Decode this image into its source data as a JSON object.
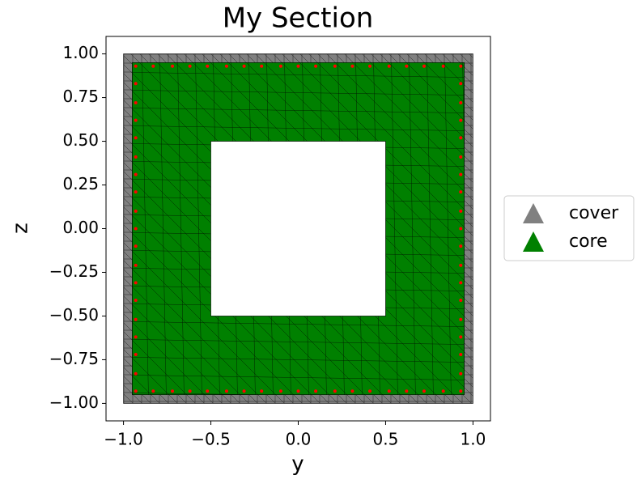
{
  "chart_data": {
    "type": "section",
    "title": "My Section",
    "xlabel": "y",
    "ylabel": "z",
    "xlim": [
      -1.1,
      1.1
    ],
    "ylim": [
      -1.1,
      1.1
    ],
    "xticks": [
      {
        "value": -1.0,
        "label": "−1.0"
      },
      {
        "value": -0.5,
        "label": "−0.5"
      },
      {
        "value": 0.0,
        "label": "0.0"
      },
      {
        "value": 0.5,
        "label": "0.5"
      },
      {
        "value": 1.0,
        "label": "1.0"
      }
    ],
    "yticks": [
      {
        "value": 1.0,
        "label": "1.00"
      },
      {
        "value": 0.75,
        "label": "0.75"
      },
      {
        "value": 0.5,
        "label": "0.50"
      },
      {
        "value": 0.25,
        "label": "0.25"
      },
      {
        "value": 0.0,
        "label": "0.00"
      },
      {
        "value": -0.25,
        "label": "−0.25"
      },
      {
        "value": -0.5,
        "label": "−0.50"
      },
      {
        "value": -0.75,
        "label": "−0.75"
      },
      {
        "value": -1.0,
        "label": "−1.00"
      }
    ],
    "legend": "right",
    "series": [
      {
        "name": "cover",
        "color": "#808080",
        "rings": [
          [
            [
              -1,
              -1
            ],
            [
              1,
              -1
            ],
            [
              1,
              1
            ],
            [
              -1,
              1
            ]
          ],
          [
            [
              -0.95,
              -0.95
            ],
            [
              0.95,
              -0.95
            ],
            [
              0.95,
              0.95
            ],
            [
              -0.95,
              0.95
            ]
          ]
        ]
      },
      {
        "name": "core",
        "color": "#008000",
        "rings": [
          [
            [
              -0.95,
              -0.95
            ],
            [
              0.95,
              -0.95
            ],
            [
              0.95,
              0.95
            ],
            [
              -0.95,
              0.95
            ]
          ],
          [
            [
              -0.5,
              -0.5
            ],
            [
              0.5,
              -0.5
            ],
            [
              0.5,
              0.5
            ],
            [
              -0.5,
              0.5
            ]
          ]
        ]
      }
    ],
    "rebar": {
      "color": "#ff0000",
      "x": [
        -0.93,
        -0.83,
        -0.72,
        -0.62,
        -0.52,
        -0.41,
        -0.31,
        -0.21,
        -0.1,
        0,
        0.1,
        0.21,
        0.31,
        0.41,
        0.52,
        0.62,
        0.72,
        0.83,
        0.93,
        -0.93,
        -0.83,
        -0.72,
        -0.62,
        -0.52,
        -0.41,
        -0.31,
        -0.21,
        -0.1,
        0,
        0.1,
        0.21,
        0.31,
        0.41,
        0.52,
        0.62,
        0.72,
        0.83,
        0.93,
        -0.93,
        -0.93,
        -0.93,
        -0.93,
        -0.93,
        -0.93,
        -0.93,
        -0.93,
        -0.93,
        -0.93,
        -0.93,
        -0.93,
        -0.93,
        -0.93,
        -0.93,
        -0.93,
        -0.93,
        0.93,
        0.93,
        0.93,
        0.93,
        0.93,
        0.93,
        0.93,
        0.93,
        0.93,
        0.93,
        0.93,
        0.93,
        0.93,
        0.93,
        0.93,
        0.93,
        0.93
      ],
      "y": [
        -0.93,
        -0.93,
        -0.93,
        -0.93,
        -0.93,
        -0.93,
        -0.93,
        -0.93,
        -0.93,
        -0.93,
        -0.93,
        -0.93,
        -0.93,
        -0.93,
        -0.93,
        -0.93,
        -0.93,
        -0.93,
        -0.93,
        0.93,
        0.93,
        0.93,
        0.93,
        0.93,
        0.93,
        0.93,
        0.93,
        0.93,
        0.93,
        0.93,
        0.93,
        0.93,
        0.93,
        0.93,
        0.93,
        0.93,
        0.93,
        0.93,
        -0.83,
        -0.72,
        -0.62,
        -0.52,
        -0.41,
        -0.31,
        -0.21,
        -0.1,
        0,
        0.1,
        0.21,
        0.31,
        0.41,
        0.52,
        0.62,
        0.72,
        0.83,
        -0.83,
        -0.72,
        -0.62,
        -0.52,
        -0.41,
        -0.31,
        -0.21,
        -0.1,
        0,
        0.1,
        0.21,
        0.31,
        0.41,
        0.52,
        0.62,
        0.72,
        0.83
      ]
    }
  }
}
